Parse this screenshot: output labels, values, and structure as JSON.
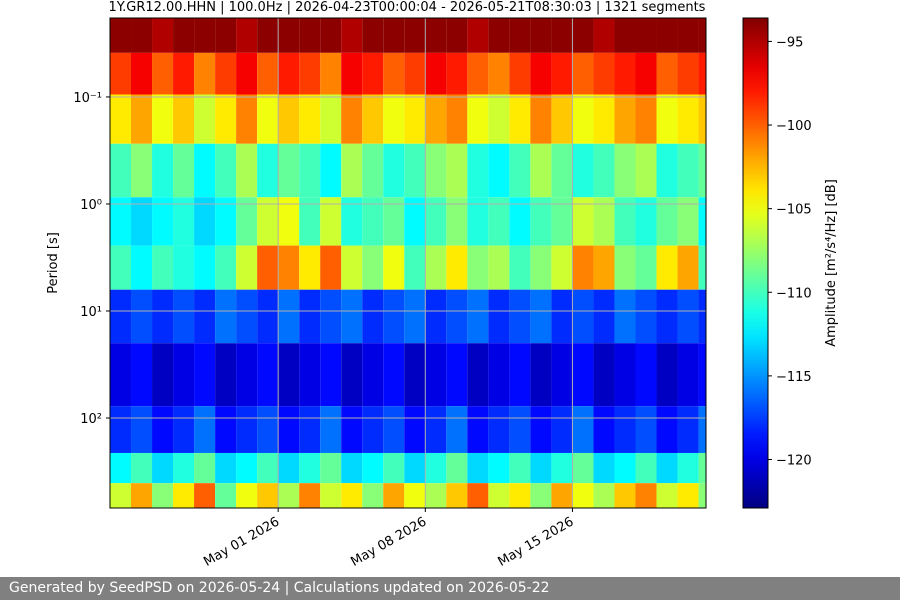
{
  "chart_data": {
    "type": "heatmap",
    "title": "1Y.GR12.00.HHN | 100.0Hz | 2026-04-23T00:00:04 - 2026-05-21T08:30:03 | 1321 segments",
    "y_label": "Period [s]",
    "colorbar_label": "Amplitude [m²/s⁴/Hz] [dB]",
    "colormap": "jet",
    "y_log": true,
    "y_inverted": true,
    "grid": true,
    "xlim": [
      "2026-04-23T00:00:04",
      "2026-05-21T08:30:03"
    ],
    "xticks": [
      {
        "value": "2026-05-01",
        "label": "May 01 2026"
      },
      {
        "value": "2026-05-08",
        "label": "May 08 2026"
      },
      {
        "value": "2026-05-15",
        "label": "May 15 2026"
      }
    ],
    "ylim": [
      0.0183,
      693
    ],
    "yticks": [
      {
        "value": 0.1,
        "label": "10⁻¹"
      },
      {
        "value": 1,
        "label": "10⁰"
      },
      {
        "value": 10,
        "label": "10¹"
      },
      {
        "value": 100,
        "label": "10²"
      }
    ],
    "clim": [
      -122.9,
      -93.6
    ],
    "cticks": [
      {
        "value": -95,
        "label": "−95"
      },
      {
        "value": -100,
        "label": "−100"
      },
      {
        "value": -105,
        "label": "−105"
      },
      {
        "value": -110,
        "label": "−110"
      },
      {
        "value": -115,
        "label": "−115"
      },
      {
        "value": -120,
        "label": "−120"
      }
    ],
    "x": [
      "2026-04-23",
      "2026-04-24",
      "2026-04-25",
      "2026-04-26",
      "2026-04-27",
      "2026-04-28",
      "2026-04-29",
      "2026-04-30",
      "2026-05-01",
      "2026-05-02",
      "2026-05-03",
      "2026-05-04",
      "2026-05-05",
      "2026-05-06",
      "2026-05-07",
      "2026-05-08",
      "2026-05-09",
      "2026-05-10",
      "2026-05-11",
      "2026-05-12",
      "2026-05-13",
      "2026-05-14",
      "2026-05-15",
      "2026-05-16",
      "2026-05-17",
      "2026-05-18",
      "2026-05-19",
      "2026-05-20",
      "2026-05-21"
    ],
    "periods": [
      0.025,
      0.06,
      0.15,
      0.5,
      1.5,
      4,
      10,
      40,
      150,
      300,
      550
    ],
    "z": [
      [
        -94,
        -94,
        -95,
        -94,
        -94,
        -94,
        -95,
        -94,
        -94,
        -94,
        -94,
        -95,
        -94,
        -94,
        -94,
        -94,
        -94,
        -95,
        -94,
        -94,
        -94,
        -94,
        -94,
        -95,
        -94,
        -94,
        -94,
        -94,
        -94
      ],
      [
        -99,
        -97,
        -100,
        -98,
        -101,
        -99,
        -97,
        -100,
        -98,
        -99,
        -101,
        -97,
        -98,
        -100,
        -99,
        -97,
        -98,
        -100,
        -101,
        -99,
        -97,
        -98,
        -100,
        -99,
        -98,
        -97,
        -100,
        -99,
        -98
      ],
      [
        -104,
        -102,
        -105,
        -103,
        -106,
        -104,
        -101,
        -105,
        -103,
        -104,
        -106,
        -101,
        -103,
        -105,
        -104,
        -102,
        -101,
        -105,
        -106,
        -104,
        -101,
        -103,
        -105,
        -104,
        -102,
        -101,
        -105,
        -104,
        -103
      ],
      [
        -110,
        -108,
        -111,
        -109,
        -112,
        -110,
        -107,
        -111,
        -109,
        -110,
        -112,
        -107,
        -109,
        -111,
        -110,
        -108,
        -107,
        -111,
        -112,
        -110,
        -107,
        -109,
        -111,
        -110,
        -108,
        -107,
        -111,
        -110,
        -109
      ],
      [
        -112,
        -113,
        -112,
        -111,
        -113,
        -112,
        -109,
        -106,
        -105,
        -110,
        -106,
        -111,
        -110,
        -109,
        -112,
        -110,
        -108,
        -111,
        -110,
        -112,
        -110,
        -109,
        -106,
        -107,
        -110,
        -111,
        -109,
        -108,
        -112
      ],
      [
        -110,
        -112,
        -110,
        -111,
        -112,
        -110,
        -106,
        -100,
        -101,
        -104,
        -100,
        -106,
        -108,
        -105,
        -110,
        -107,
        -104,
        -108,
        -107,
        -110,
        -108,
        -106,
        -101,
        -102,
        -108,
        -109,
        -104,
        -102,
        -110
      ],
      [
        -118,
        -117,
        -118,
        -117,
        -118,
        -116,
        -117,
        -118,
        -116,
        -118,
        -117,
        -116,
        -118,
        -117,
        -116,
        -118,
        -117,
        -116,
        -118,
        -117,
        -116,
        -118,
        -117,
        -118,
        -116,
        -117,
        -118,
        -117,
        -118
      ],
      [
        -120,
        -119,
        -121,
        -120,
        -119,
        -121,
        -120,
        -119,
        -121,
        -120,
        -119,
        -121,
        -120,
        -119,
        -121,
        -120,
        -119,
        -121,
        -120,
        -119,
        -121,
        -120,
        -119,
        -121,
        -120,
        -119,
        -121,
        -120,
        -119
      ],
      [
        -118,
        -117,
        -119,
        -118,
        -116,
        -119,
        -118,
        -117,
        -119,
        -118,
        -116,
        -119,
        -118,
        -117,
        -119,
        -118,
        -116,
        -119,
        -118,
        -117,
        -119,
        -118,
        -116,
        -119,
        -118,
        -117,
        -119,
        -118,
        -116
      ],
      [
        -112,
        -110,
        -113,
        -111,
        -109,
        -113,
        -112,
        -110,
        -113,
        -111,
        -109,
        -113,
        -112,
        -110,
        -113,
        -111,
        -109,
        -113,
        -112,
        -110,
        -113,
        -111,
        -109,
        -113,
        -112,
        -110,
        -113,
        -111,
        -109
      ],
      [
        -106,
        -102,
        -108,
        -104,
        -100,
        -109,
        -105,
        -103,
        -107,
        -101,
        -106,
        -104,
        -108,
        -102,
        -105,
        -107,
        -103,
        -100,
        -106,
        -104,
        -108,
        -102,
        -105,
        -107,
        -103,
        -101,
        -106,
        -104,
        -108
      ]
    ]
  },
  "footer": "Generated by SeedPSD on 2026-05-24 | Calculations updated on 2026-05-22"
}
